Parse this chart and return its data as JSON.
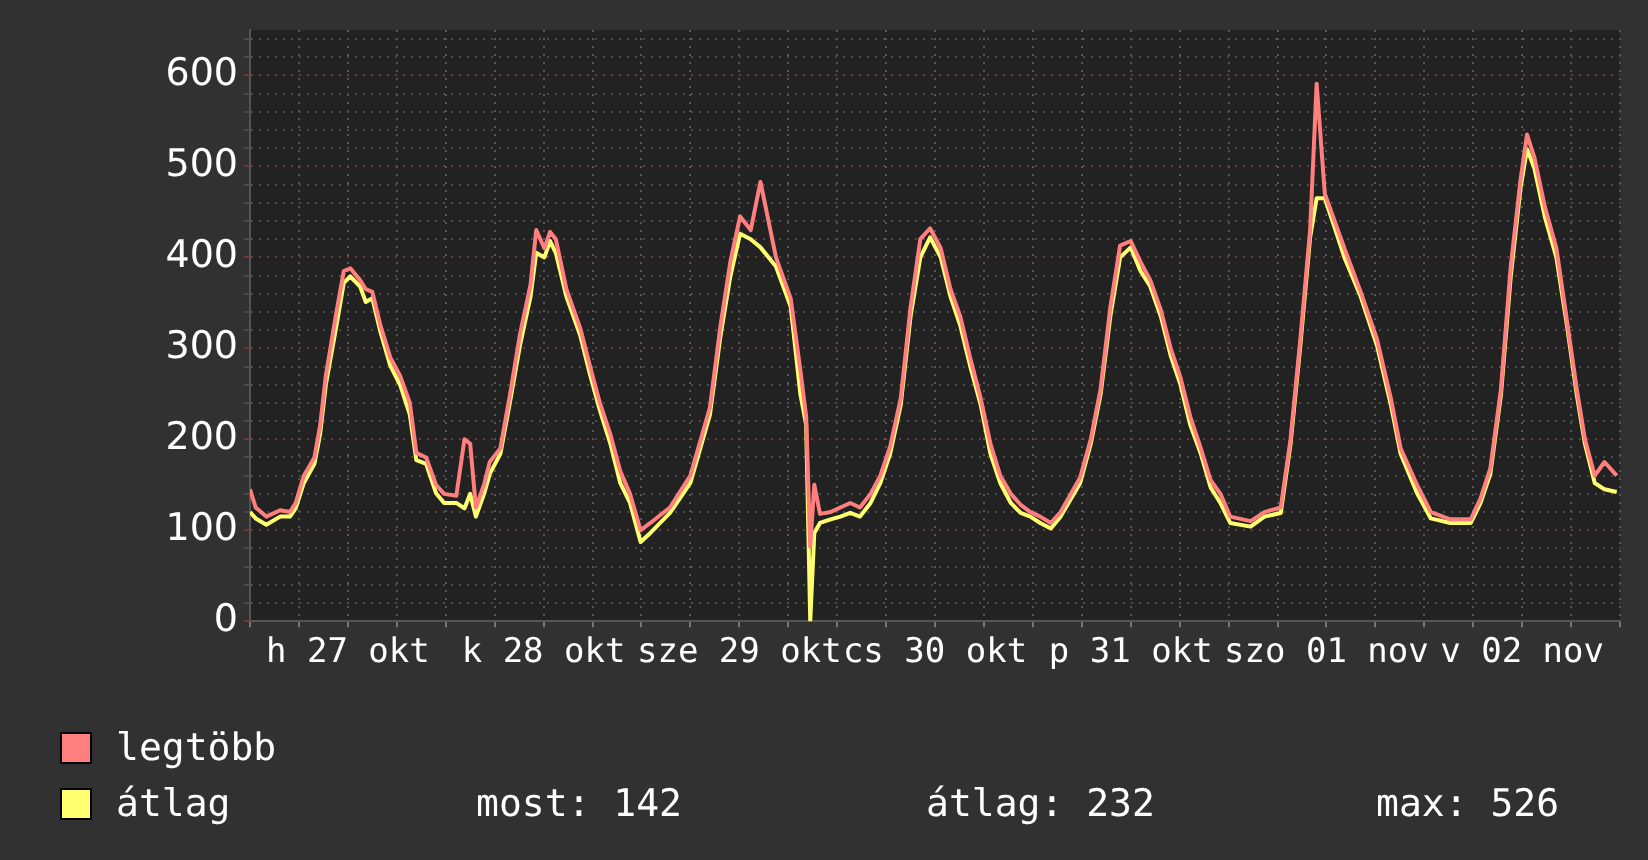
{
  "chart_data": {
    "type": "line",
    "x": [
      "--10-27T00:00",
      "--10-27T00:42",
      "--10-27T02:00",
      "--10-27T03:42",
      "--10-27T04:54",
      "--10-27T05:36",
      "--10-27T06:36",
      "--10-27T07:54",
      "--10-27T08:36",
      "--10-27T09:18",
      "--10-27T10:36",
      "--10-27T11:30",
      "--10-27T12:18",
      "--10-27T13:30",
      "--10-27T14:12",
      "--10-27T15:00",
      "--10-27T16:00",
      "--10-27T17:12",
      "--10-27T18:24",
      "--10-27T19:36",
      "--10-27T20:24",
      "--10-27T21:36",
      "--10-27T22:48",
      "--10-27T23:48",
      "--10-28T01:18",
      "--10-28T02:18",
      "--10-28T03:00",
      "--10-28T03:42",
      "--10-28T04:42",
      "--10-28T05:24",
      "--10-28T06:42",
      "--10-28T07:54",
      "--10-28T09:06",
      "--10-28T10:24",
      "--10-28T11:06",
      "--10-28T12:06",
      "--10-28T12:48",
      "--10-28T13:30",
      "--10-28T14:48",
      "--10-28T16:30",
      "--10-28T17:42",
      "--10-28T18:54",
      "--10-28T20:12",
      "--10-28T21:24",
      "--10-28T22:36",
      "--10-28T23:54",
      "--10-29T01:06",
      "--10-29T03:30",
      "--10-29T06:00",
      "--10-29T08:24",
      "--10-29T09:42",
      "--10-29T10:54",
      "--10-29T12:06",
      "--10-29T13:24",
      "--10-29T14:36",
      "--10-29T16:30",
      "--10-29T18:18",
      "--10-29T19:30",
      "--10-29T20:12",
      "--10-29T20:42",
      "--10-29T21:12",
      "--10-29T21:54",
      "--10-29T23:12",
      "--10-30T00:24",
      "--10-30T01:36",
      "--10-30T02:48",
      "--10-30T04:06",
      "--10-30T05:18",
      "--10-30T06:30",
      "--10-30T07:48",
      "--10-30T09:00",
      "--10-30T10:12",
      "--10-30T11:24",
      "--10-30T12:42",
      "--10-30T13:54",
      "--10-30T15:06",
      "--10-30T16:18",
      "--10-30T17:36",
      "--10-30T18:48",
      "--10-30T20:00",
      "--10-30T21:18",
      "--10-30T22:30",
      "--10-30T23:42",
      "--10-31T00:54",
      "--10-31T02:12",
      "--10-31T03:24",
      "--10-31T05:48",
      "--10-31T07:06",
      "--10-31T08:18",
      "--10-31T09:30",
      "--10-31T10:42",
      "--10-31T12:00",
      "--10-31T13:12",
      "--10-31T14:24",
      "--10-31T15:42",
      "--10-31T16:54",
      "--10-31T18:06",
      "--10-31T19:18",
      "--10-31T20:36",
      "--10-31T21:48",
      "--10-31T23:00",
      "--11-01T00:12",
      "--11-01T02:42",
      "--11-01T04:24",
      "--11-01T06:24",
      "--11-01T07:36",
      "--11-01T08:48",
      "--11-01T10:00",
      "--11-01T10:48",
      "--11-01T11:48",
      "--11-01T13:00",
      "--11-01T14:12",
      "--11-01T16:12",
      "--11-01T18:12",
      "--11-01T19:54",
      "--11-01T21:06",
      "--11-01T23:06",
      "--11-02T00:48",
      "--11-02T03:12",
      "--11-02T05:42",
      "--11-02T06:54",
      "--11-02T08:06",
      "--11-02T09:24",
      "--11-02T10:36",
      "--11-02T11:48",
      "--11-02T12:36",
      "--11-02T13:30",
      "--11-02T14:48",
      "--11-02T16:12",
      "--11-02T17:30",
      "--11-02T18:42",
      "--11-02T19:42",
      "--11-02T20:54",
      "--11-02T22:06",
      "--11-02T23:36"
    ],
    "series": [
      {
        "name": "legtöbb",
        "color": "#ff7f7f",
        "values": [
          145,
          125,
          115,
          122,
          120,
          130,
          160,
          180,
          215,
          270,
          340,
          385,
          388,
          375,
          365,
          362,
          325,
          290,
          270,
          240,
          185,
          180,
          150,
          140,
          138,
          200,
          195,
          125,
          150,
          175,
          190,
          250,
          315,
          370,
          430,
          410,
          428,
          420,
          365,
          322,
          280,
          240,
          205,
          165,
          140,
          100,
          108,
          125,
          160,
          235,
          325,
          395,
          445,
          430,
          483,
          400,
          355,
          275,
          225,
          82,
          150,
          118,
          120,
          125,
          130,
          125,
          140,
          160,
          192,
          245,
          345,
          420,
          432,
          410,
          365,
          335,
          290,
          245,
          195,
          160,
          140,
          128,
          120,
          115,
          108,
          120,
          158,
          200,
          255,
          345,
          413,
          418,
          395,
          375,
          342,
          300,
          268,
          225,
          190,
          155,
          140,
          115,
          110,
          120,
          125,
          200,
          310,
          430,
          591,
          470,
          440,
          410,
          362,
          310,
          245,
          190,
          150,
          120,
          112,
          112,
          135,
          168,
          255,
          390,
          485,
          535,
          510,
          455,
          410,
          330,
          255,
          200,
          160,
          175,
          160
        ]
      },
      {
        "name": "átlag",
        "color": "#ffff70",
        "values": [
          120,
          113,
          106,
          115,
          115,
          124,
          152,
          173,
          206,
          260,
          325,
          372,
          379,
          368,
          351,
          355,
          318,
          281,
          260,
          227,
          177,
          173,
          141,
          130,
          130,
          124,
          140,
          115,
          140,
          162,
          184,
          242,
          303,
          357,
          405,
          400,
          418,
          405,
          357,
          314,
          271,
          232,
          195,
          152,
          130,
          87,
          97,
          119,
          152,
          227,
          314,
          379,
          426,
          420,
          411,
          390,
          346,
          249,
          216,
          0,
          97,
          108,
          112,
          115,
          119,
          115,
          130,
          152,
          184,
          238,
          335,
          400,
          422,
          400,
          357,
          325,
          281,
          238,
          184,
          152,
          130,
          119,
          115,
          108,
          102,
          115,
          152,
          195,
          249,
          335,
          400,
          411,
          385,
          368,
          335,
          292,
          260,
          216,
          184,
          147,
          130,
          108,
          104,
          115,
          119,
          195,
          303,
          422,
          465,
          465,
          433,
          400,
          357,
          303,
          238,
          184,
          141,
          113,
          108,
          108,
          130,
          162,
          249,
          379,
          476,
          519,
          498,
          444,
          400,
          325,
          249,
          195,
          152,
          145,
          142
        ]
      }
    ],
    "xlim": [
      "--10-27T00:00",
      "--11-03T00:00"
    ],
    "xticks": [
      {
        "value": "--10-27T00:00",
        "label": null
      },
      {
        "value": "--10-27T06:00",
        "label": null
      },
      {
        "value": "--10-27T12:00",
        "label": "h 27 okt"
      },
      {
        "value": "--10-27T18:00",
        "label": null
      },
      {
        "value": "--10-28T00:00",
        "label": null
      },
      {
        "value": "--10-28T06:00",
        "label": null
      },
      {
        "value": "--10-28T12:00",
        "label": "k 28 okt"
      },
      {
        "value": "--10-28T18:00",
        "label": null
      },
      {
        "value": "--10-29T00:00",
        "label": null
      },
      {
        "value": "--10-29T06:00",
        "label": null
      },
      {
        "value": "--10-29T12:00",
        "label": "sze 29 okt"
      },
      {
        "value": "--10-29T18:00",
        "label": null
      },
      {
        "value": "--10-30T00:00",
        "label": null
      },
      {
        "value": "--10-30T06:00",
        "label": null
      },
      {
        "value": "--10-30T12:00",
        "label": "cs 30 okt"
      },
      {
        "value": "--10-30T18:00",
        "label": null
      },
      {
        "value": "--10-31T00:00",
        "label": null
      },
      {
        "value": "--10-31T06:00",
        "label": null
      },
      {
        "value": "--10-31T12:00",
        "label": "p 31 okt"
      },
      {
        "value": "--10-31T18:00",
        "label": null
      },
      {
        "value": "--11-01T00:00",
        "label": null
      },
      {
        "value": "--11-01T06:00",
        "label": null
      },
      {
        "value": "--11-01T12:00",
        "label": "szo 01 nov"
      },
      {
        "value": "--11-01T18:00",
        "label": null
      },
      {
        "value": "--11-02T00:00",
        "label": null
      },
      {
        "value": "--11-02T06:00",
        "label": null
      },
      {
        "value": "--11-02T12:00",
        "label": "v 02 nov"
      },
      {
        "value": "--11-02T18:00",
        "label": null
      },
      {
        "value": "--11-03T00:00",
        "label": null
      }
    ],
    "ylim": [
      0,
      650
    ],
    "yticks": [
      0,
      {
        "value": 20,
        "label": null
      },
      {
        "value": 40,
        "label": null
      },
      {
        "value": 60,
        "label": null
      },
      {
        "value": 80,
        "label": null
      },
      100,
      {
        "value": 120,
        "label": null
      },
      {
        "value": 140,
        "label": null
      },
      {
        "value": 160,
        "label": null
      },
      {
        "value": 180,
        "label": null
      },
      200,
      {
        "value": 220,
        "label": null
      },
      {
        "value": 240,
        "label": null
      },
      {
        "value": 260,
        "label": null
      },
      {
        "value": 280,
        "label": null
      },
      300,
      {
        "value": 320,
        "label": null
      },
      {
        "value": 340,
        "label": null
      },
      {
        "value": 360,
        "label": null
      },
      {
        "value": 380,
        "label": null
      },
      400,
      {
        "value": 420,
        "label": null
      },
      {
        "value": 440,
        "label": null
      },
      {
        "value": 460,
        "label": null
      },
      {
        "value": 480,
        "label": null
      },
      500,
      {
        "value": 520,
        "label": null
      },
      {
        "value": 540,
        "label": null
      },
      {
        "value": 560,
        "label": null
      },
      {
        "value": 580,
        "label": null
      },
      600,
      {
        "value": 620,
        "label": null
      },
      {
        "value": 640,
        "label": null
      }
    ],
    "grid": true,
    "legend": "bottom",
    "marker": "none",
    "line_style": "solid",
    "annotations": [
      "most: 142",
      "átlag: 232",
      "max: 526"
    ]
  }
}
